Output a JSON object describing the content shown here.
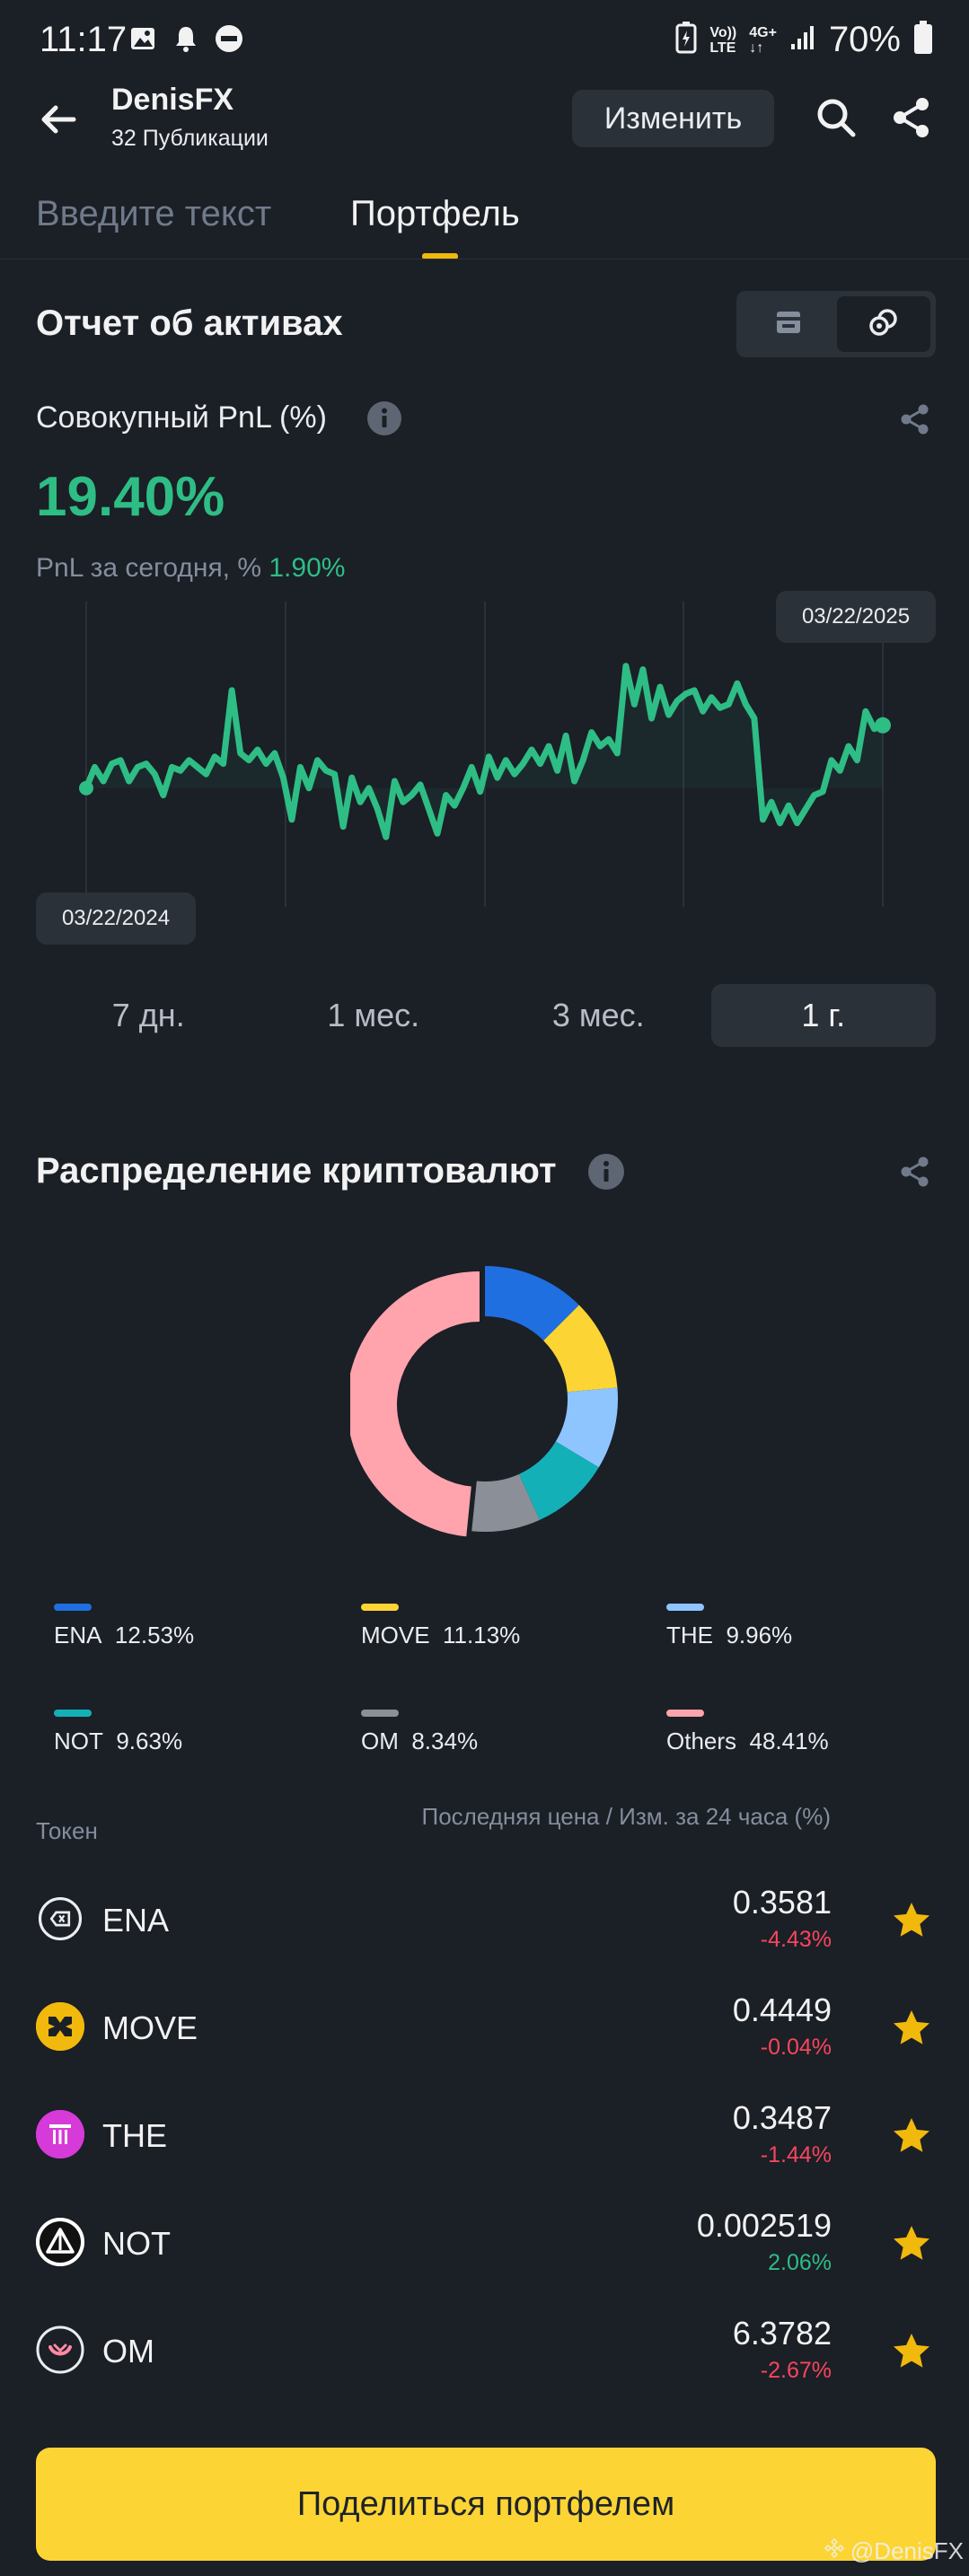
{
  "status_bar": {
    "time": "11:17",
    "battery": "70%",
    "network_labels": [
      "Vo))",
      "LTE",
      "4G+"
    ]
  },
  "header": {
    "name": "DenisFX",
    "subtitle": "32 Публикации",
    "edit_label": "Изменить"
  },
  "tabs": [
    {
      "label": "Введите текст",
      "active": false
    },
    {
      "label": "Портфель",
      "active": true
    }
  ],
  "report": {
    "title": "Отчет об активах",
    "pnl_label": "Совокупный PnL (%)",
    "pnl_value": "19.40%",
    "today_label": "PnL за сегодня, %",
    "today_value": "1.90%",
    "date_start": "03/22/2024",
    "date_end": "03/22/2025",
    "periods": [
      {
        "label": "7 дн.",
        "active": false
      },
      {
        "label": "1 мес.",
        "active": false
      },
      {
        "label": "3 мес.",
        "active": false
      },
      {
        "label": "1 г.",
        "active": true
      }
    ]
  },
  "chart_data": {
    "type": "line",
    "title": "",
    "xlabel": "",
    "ylabel": "",
    "x_range": [
      "03/22/2024",
      "03/22/2025"
    ],
    "color": "#2ebd85",
    "values": [
      0.0,
      3.0,
      1.0,
      3.5,
      4.0,
      1.0,
      3.0,
      3.5,
      2.0,
      -1.0,
      3.0,
      2.5,
      4.0,
      3.0,
      2.0,
      4.5,
      3.5,
      14.0,
      5.0,
      4.0,
      5.5,
      3.5,
      5.0,
      1.5,
      -4.5,
      3.0,
      0.0,
      4.0,
      2.5,
      2.0,
      -5.5,
      1.5,
      -2.0,
      0.0,
      -3.0,
      -7.0,
      1.0,
      -2.0,
      -1.0,
      0.5,
      -3.0,
      -6.5,
      -1.0,
      -2.5,
      0.0,
      3.0,
      -0.5,
      4.5,
      1.5,
      4.0,
      2.0,
      3.5,
      5.5,
      3.5,
      6.0,
      2.5,
      7.5,
      1.0,
      4.0,
      8.0,
      6.0,
      7.0,
      5.0,
      17.5,
      12.0,
      17.0,
      10.0,
      14.5,
      10.5,
      12.5,
      13.5,
      14.0,
      11.0,
      13.0,
      11.5,
      12.0,
      15.0,
      12.0,
      10.0,
      -4.5,
      -2.0,
      -5.0,
      -2.5,
      -5.0,
      -3.0,
      -1.0,
      -0.5,
      4.0,
      2.5,
      6.0,
      4.0,
      11.0,
      8.5,
      9.0
    ],
    "start_marker_value": 0.0,
    "end_marker_value": 9.0
  },
  "allocation": {
    "title": "Распределение криптовалют",
    "legend": [
      {
        "name": "ENA",
        "pct": "12.53%",
        "value": 12.53,
        "color": "#1f6fe0"
      },
      {
        "name": "MOVE",
        "pct": "11.13%",
        "value": 11.13,
        "color": "#fcd535"
      },
      {
        "name": "THE",
        "pct": "9.96%",
        "value": 9.96,
        "color": "#8ec5ff"
      },
      {
        "name": "NOT",
        "pct": "9.63%",
        "value": 9.63,
        "color": "#14b0b8"
      },
      {
        "name": "OM",
        "pct": "8.34%",
        "value": 8.34,
        "color": "#8b9098"
      },
      {
        "name": "Others",
        "pct": "48.41%",
        "value": 48.41,
        "color": "#ffa3ad"
      }
    ]
  },
  "token_table": {
    "col_token": "Токен",
    "col_price": "Последняя цена / Изм. за 24 часа (%)",
    "rows": [
      {
        "symbol": "ENA",
        "price": "0.3581",
        "change": "-4.43%",
        "dir": "neg",
        "logo_icon": "ena-logo-icon"
      },
      {
        "symbol": "MOVE",
        "price": "0.4449",
        "change": "-0.04%",
        "dir": "neg",
        "logo_icon": "move-logo-icon"
      },
      {
        "symbol": "THE",
        "price": "0.3487",
        "change": "-1.44%",
        "dir": "neg",
        "logo_icon": "the-logo-icon"
      },
      {
        "symbol": "NOT",
        "price": "0.002519",
        "change": "2.06%",
        "dir": "pos",
        "logo_icon": "not-logo-icon"
      },
      {
        "symbol": "OM",
        "price": "6.3782",
        "change": "-2.67%",
        "dir": "neg",
        "logo_icon": "om-logo-icon"
      }
    ]
  },
  "footer": {
    "share_label": "Поделиться портфелем",
    "watermark": "@DenisFX"
  },
  "colors": {
    "background": "#1b1f26",
    "accent": "#fcd535",
    "positive": "#2ebd85",
    "negative": "#f6465d"
  }
}
